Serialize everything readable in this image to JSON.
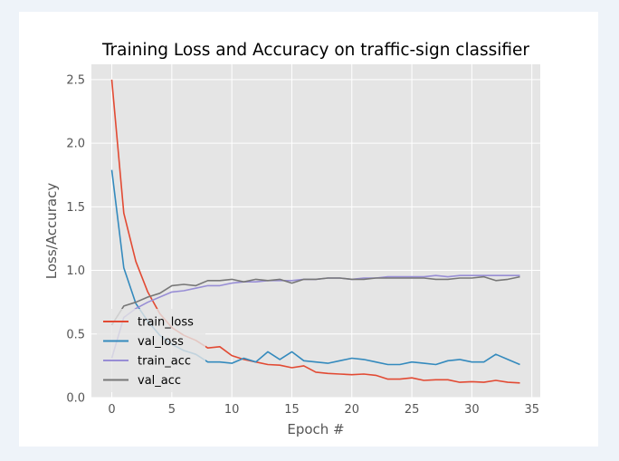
{
  "chart_data": {
    "type": "line",
    "title": "Training Loss and Accuracy on traffic-sign classifier",
    "xlabel": "Epoch #",
    "ylabel": "Loss/Accuracy",
    "xlim": [
      -1.7,
      35.7
    ],
    "ylim": [
      0,
      2.62
    ],
    "xticks": [
      0,
      5,
      10,
      15,
      20,
      25,
      30,
      35
    ],
    "yticks": [
      0.0,
      0.5,
      1.0,
      1.5,
      2.0,
      2.5
    ],
    "xtick_labels": [
      "0",
      "5",
      "10",
      "15",
      "20",
      "25",
      "30",
      "35"
    ],
    "ytick_labels": [
      "0.0",
      "0.5",
      "1.0",
      "1.5",
      "2.0",
      "2.5"
    ],
    "grid": true,
    "legend_position": "lower-left",
    "x": [
      0,
      1,
      2,
      3,
      4,
      5,
      6,
      7,
      8,
      9,
      10,
      11,
      12,
      13,
      14,
      15,
      16,
      17,
      18,
      19,
      20,
      21,
      22,
      23,
      24,
      25,
      26,
      27,
      28,
      29,
      30,
      31,
      32,
      33,
      34
    ],
    "series": [
      {
        "name": "train_loss",
        "color": "#e24a33",
        "values": [
          2.5,
          1.45,
          1.07,
          0.83,
          0.66,
          0.55,
          0.49,
          0.45,
          0.39,
          0.4,
          0.33,
          0.3,
          0.28,
          0.26,
          0.255,
          0.235,
          0.25,
          0.2,
          0.19,
          0.185,
          0.18,
          0.185,
          0.175,
          0.145,
          0.145,
          0.155,
          0.135,
          0.14,
          0.14,
          0.12,
          0.125,
          0.12,
          0.135,
          0.12,
          0.115
        ]
      },
      {
        "name": "val_loss",
        "color": "#348abd",
        "values": [
          1.79,
          1.02,
          0.74,
          0.6,
          0.49,
          0.42,
          0.37,
          0.34,
          0.28,
          0.28,
          0.27,
          0.31,
          0.28,
          0.36,
          0.3,
          0.36,
          0.29,
          0.28,
          0.27,
          0.29,
          0.31,
          0.3,
          0.28,
          0.26,
          0.26,
          0.28,
          0.27,
          0.26,
          0.29,
          0.3,
          0.28,
          0.28,
          0.34,
          0.3,
          0.26
        ]
      },
      {
        "name": "train_acc",
        "color": "#988ed5",
        "values": [
          0.31,
          0.63,
          0.7,
          0.75,
          0.79,
          0.83,
          0.84,
          0.86,
          0.88,
          0.88,
          0.9,
          0.91,
          0.91,
          0.92,
          0.92,
          0.92,
          0.93,
          0.93,
          0.94,
          0.94,
          0.93,
          0.94,
          0.94,
          0.95,
          0.95,
          0.95,
          0.95,
          0.96,
          0.95,
          0.96,
          0.96,
          0.96,
          0.96,
          0.96,
          0.96
        ]
      },
      {
        "name": "val_acc",
        "color": "#777777",
        "values": [
          0.57,
          0.72,
          0.75,
          0.79,
          0.82,
          0.88,
          0.89,
          0.88,
          0.92,
          0.92,
          0.93,
          0.91,
          0.93,
          0.92,
          0.93,
          0.9,
          0.93,
          0.93,
          0.94,
          0.94,
          0.93,
          0.93,
          0.94,
          0.94,
          0.94,
          0.94,
          0.94,
          0.93,
          0.93,
          0.94,
          0.94,
          0.95,
          0.92,
          0.93,
          0.95
        ]
      }
    ],
    "colors": {
      "plot_background": "#e5e5e5",
      "grid": "#ffffff",
      "legend_background": "#e5e5e5"
    }
  }
}
